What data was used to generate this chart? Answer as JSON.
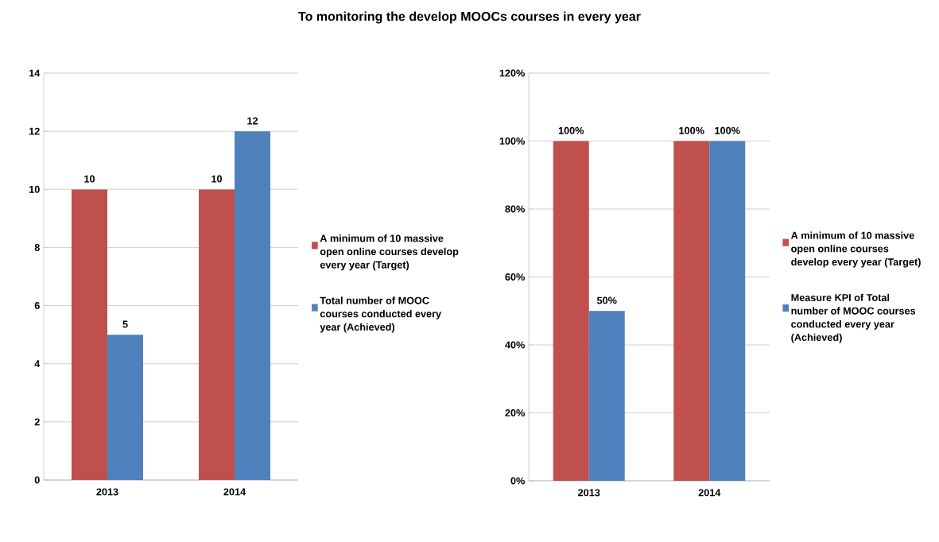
{
  "chart_data": [
    {
      "type": "bar",
      "title": "To monitoring the develop MOOCs courses in every year",
      "categories": [
        "2013",
        "2014"
      ],
      "series": [
        {
          "name": "A minimum of 10 massive open online courses develop every year (Target)",
          "color": "#c0504d",
          "values": [
            10,
            10
          ]
        },
        {
          "name": "Total number of MOOC courses conducted every year (Achieved)",
          "color": "#4f81bd",
          "values": [
            5,
            12
          ]
        }
      ],
      "ylim": [
        0,
        14
      ],
      "yticks": [
        0,
        2,
        4,
        6,
        8,
        10,
        12,
        14
      ],
      "grid": "y",
      "legend": "right",
      "data_labels": true
    },
    {
      "type": "bar",
      "categories": [
        "2013",
        "2014"
      ],
      "series": [
        {
          "name": "A minimum of 10 massive open online courses develop every year (Target)",
          "color": "#c0504d",
          "values": [
            100,
            100
          ],
          "value_labels": [
            "100%",
            "100%"
          ]
        },
        {
          "name": "Measure KPI of Total number of MOOC courses conducted every year (Achieved)",
          "color": "#4f81bd",
          "values": [
            50,
            100
          ],
          "value_labels": [
            "50%",
            "100%"
          ]
        }
      ],
      "ylim": [
        0,
        120
      ],
      "yticks": [
        {
          "value": 0,
          "label": "0%"
        },
        {
          "value": 20,
          "label": "20%"
        },
        {
          "value": 40,
          "label": "40%"
        },
        {
          "value": 60,
          "label": "60%"
        },
        {
          "value": 80,
          "label": "80%"
        },
        {
          "value": 100,
          "label": "100%"
        },
        {
          "value": 120,
          "label": "120%"
        }
      ],
      "grid": "y",
      "legend": "right"
    }
  ]
}
